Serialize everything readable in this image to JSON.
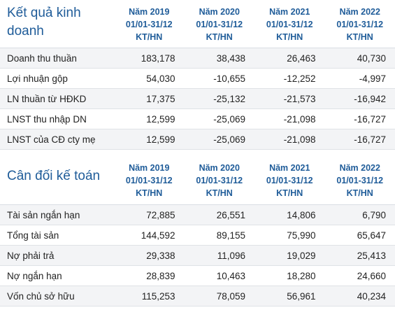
{
  "kqkd": {
    "title": "Kết quả kinh doanh",
    "columns": [
      {
        "year": "Năm 2019",
        "period": "01/01-31/12",
        "unit": "KT/HN"
      },
      {
        "year": "Năm 2020",
        "period": "01/01-31/12",
        "unit": "KT/HN"
      },
      {
        "year": "Năm 2021",
        "period": "01/01-31/12",
        "unit": "KT/HN"
      },
      {
        "year": "Năm 2022",
        "period": "01/01-31/12",
        "unit": "KT/HN"
      }
    ],
    "rows": [
      {
        "label": "Doanh thu thuần",
        "values": [
          "183,178",
          "38,438",
          "26,463",
          "40,730"
        ]
      },
      {
        "label": "Lợi nhuận gộp",
        "values": [
          "54,030",
          "-10,655",
          "-12,252",
          "-4,997"
        ]
      },
      {
        "label": "LN thuần từ HĐKD",
        "values": [
          "17,375",
          "-25,132",
          "-21,573",
          "-16,942"
        ]
      },
      {
        "label": "LNST thu nhập DN",
        "values": [
          "12,599",
          "-25,069",
          "-21,098",
          "-16,727"
        ]
      },
      {
        "label": "LNST của CĐ cty mẹ",
        "values": [
          "12,599",
          "-25,069",
          "-21,098",
          "-16,727"
        ]
      }
    ]
  },
  "cdkt": {
    "title": "Cân đối kế toán",
    "columns": [
      {
        "year": "Năm 2019",
        "period": "01/01-31/12",
        "unit": "KT/HN"
      },
      {
        "year": "Năm 2020",
        "period": "01/01-31/12",
        "unit": "KT/HN"
      },
      {
        "year": "Năm 2021",
        "period": "01/01-31/12",
        "unit": "KT/HN"
      },
      {
        "year": "Năm 2022",
        "period": "01/01-31/12",
        "unit": "KT/HN"
      }
    ],
    "rows": [
      {
        "label": "Tài sản ngắn hạn",
        "values": [
          "72,885",
          "26,551",
          "14,806",
          "6,790"
        ]
      },
      {
        "label": "Tổng tài sản",
        "values": [
          "144,592",
          "89,155",
          "75,990",
          "65,647"
        ]
      },
      {
        "label": "Nợ phải trả",
        "values": [
          "29,338",
          "11,096",
          "19,029",
          "25,413"
        ]
      },
      {
        "label": "Nợ ngắn hạn",
        "values": [
          "28,839",
          "10,463",
          "18,280",
          "24,660"
        ]
      },
      {
        "label": "Vốn chủ sở hữu",
        "values": [
          "115,253",
          "78,059",
          "56,961",
          "40,234"
        ]
      }
    ]
  }
}
